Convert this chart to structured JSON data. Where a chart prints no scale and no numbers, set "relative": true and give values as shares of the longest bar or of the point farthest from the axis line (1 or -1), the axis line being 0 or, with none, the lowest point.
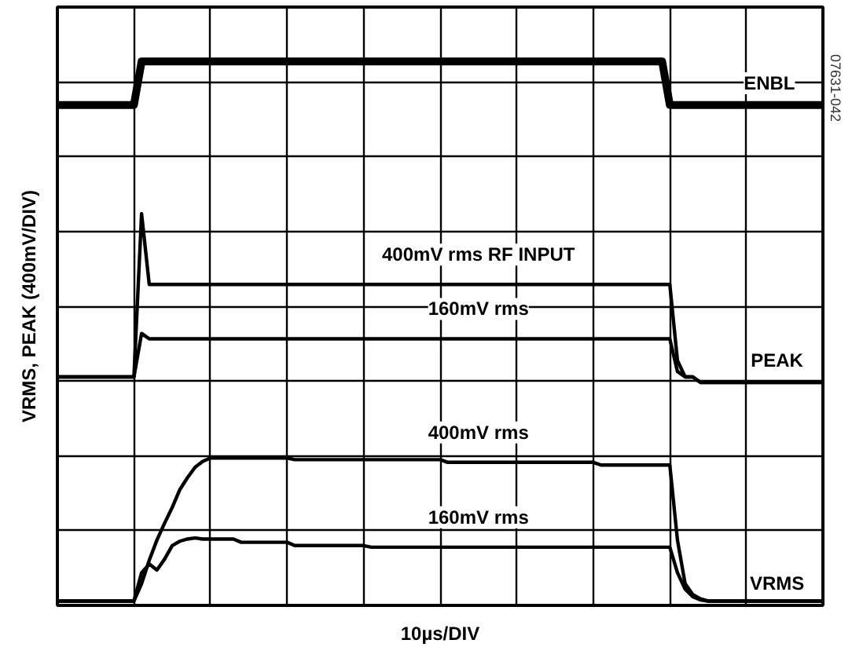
{
  "chart_data": {
    "type": "line",
    "relative": true,
    "xlabel": "10µs/DIV",
    "ylabel": "VRMS, PEAK (400mV/DIV)",
    "categories": [
      null,
      null,
      null,
      null,
      null,
      null,
      null,
      null,
      null,
      null,
      null,
      null,
      null,
      null,
      null,
      null,
      null,
      null,
      null,
      null,
      null,
      null,
      null,
      null,
      null,
      null,
      null,
      null,
      null,
      null,
      null,
      null,
      null,
      null,
      null,
      null,
      null,
      null,
      null,
      null,
      null,
      null,
      null,
      null,
      null,
      null,
      null,
      null,
      null,
      null,
      null,
      null,
      null,
      null,
      null,
      null,
      null,
      null,
      null,
      null,
      null,
      null,
      null,
      null,
      null,
      null,
      null,
      null,
      null,
      null,
      null,
      null,
      null,
      null,
      null,
      null,
      null,
      null,
      null,
      null,
      null,
      null,
      null,
      null,
      null,
      null,
      null,
      null,
      null,
      null,
      null,
      null,
      null,
      null,
      null,
      null,
      null,
      null,
      null,
      null,
      null
    ],
    "grid": true,
    "legend": false,
    "marker": "none",
    "line_style": "solid",
    "series": [
      {
        "name": "ENBL",
        "color": "#000000",
        "values": [
          0.92,
          0.92,
          0.92,
          0.92,
          0.92,
          0.92,
          0.92,
          0.92,
          0.92,
          0.92,
          0.92,
          1,
          1,
          1,
          1,
          1,
          1,
          1,
          1,
          1,
          1,
          1,
          1,
          1,
          1,
          1,
          1,
          1,
          1,
          1,
          1,
          1,
          1,
          1,
          1,
          1,
          1,
          1,
          1,
          1,
          1,
          1,
          1,
          1,
          1,
          1,
          1,
          1,
          1,
          1,
          1,
          1,
          1,
          1,
          1,
          1,
          1,
          1,
          1,
          1,
          1,
          1,
          1,
          1,
          1,
          1,
          1,
          1,
          1,
          1,
          1,
          1,
          1,
          1,
          1,
          1,
          1,
          1,
          1,
          1,
          0.92,
          0.92,
          0.92,
          0.92,
          0.92,
          0.92,
          0.92,
          0.92,
          0.92,
          0.92,
          0.92,
          0.92,
          0.92,
          0.92,
          0.92,
          0.92,
          0.92,
          0.92,
          0.92,
          0.92,
          0.92
        ]
      },
      {
        "name": "400mV rms RF INPUT",
        "color": "#000000",
        "values": [
          0.42,
          0.42,
          0.42,
          0.42,
          0.42,
          0.42,
          0.42,
          0.42,
          0.42,
          0.42,
          0.42,
          0.72,
          0.59,
          0.59,
          0.59,
          0.59,
          0.59,
          0.59,
          0.59,
          0.59,
          0.59,
          0.59,
          0.59,
          0.59,
          0.59,
          0.59,
          0.59,
          0.59,
          0.59,
          0.59,
          0.59,
          0.59,
          0.59,
          0.59,
          0.59,
          0.59,
          0.59,
          0.59,
          0.59,
          0.59,
          0.59,
          0.59,
          0.59,
          0.59,
          0.59,
          0.59,
          0.59,
          0.59,
          0.59,
          0.59,
          0.59,
          0.59,
          0.59,
          0.59,
          0.59,
          0.59,
          0.59,
          0.59,
          0.59,
          0.59,
          0.59,
          0.59,
          0.59,
          0.59,
          0.59,
          0.59,
          0.59,
          0.59,
          0.59,
          0.59,
          0.59,
          0.59,
          0.59,
          0.59,
          0.59,
          0.59,
          0.59,
          0.59,
          0.59,
          0.59,
          0.59,
          0.45,
          0.42,
          0.42,
          0.41,
          0.41,
          0.41,
          0.41,
          0.41,
          0.41,
          0.41,
          0.41,
          0.41,
          0.41,
          0.41,
          0.41,
          0.41,
          0.41,
          0.41,
          0.41,
          0.41
        ]
      },
      {
        "name": "160mV rms",
        "color": "#000000",
        "values": [
          0.42,
          0.42,
          0.42,
          0.42,
          0.42,
          0.42,
          0.42,
          0.42,
          0.42,
          0.42,
          0.42,
          0.5,
          0.49,
          0.49,
          0.49,
          0.49,
          0.49,
          0.49,
          0.49,
          0.49,
          0.49,
          0.49,
          0.49,
          0.49,
          0.49,
          0.49,
          0.49,
          0.49,
          0.49,
          0.49,
          0.49,
          0.49,
          0.49,
          0.49,
          0.49,
          0.49,
          0.49,
          0.49,
          0.49,
          0.49,
          0.49,
          0.49,
          0.49,
          0.49,
          0.49,
          0.49,
          0.49,
          0.49,
          0.49,
          0.49,
          0.49,
          0.49,
          0.49,
          0.49,
          0.49,
          0.49,
          0.49,
          0.49,
          0.49,
          0.49,
          0.49,
          0.49,
          0.49,
          0.49,
          0.49,
          0.49,
          0.49,
          0.49,
          0.49,
          0.49,
          0.49,
          0.49,
          0.49,
          0.49,
          0.49,
          0.49,
          0.49,
          0.49,
          0.49,
          0.49,
          0.49,
          0.43,
          0.42,
          0.42,
          0.41,
          0.41,
          0.41,
          0.41,
          0.41,
          0.41,
          0.41,
          0.41,
          0.41,
          0.41,
          0.41,
          0.41,
          0.41,
          0.41,
          0.41,
          0.41,
          0.41
        ]
      },
      {
        "name": "400mV rms",
        "color": "#000000",
        "values": [
          0.008,
          0.008,
          0.008,
          0.008,
          0.008,
          0.008,
          0.008,
          0.008,
          0.008,
          0.008,
          0.008,
          0.04,
          0.083,
          0.12,
          0.151,
          0.18,
          0.213,
          0.235,
          0.254,
          0.265,
          0.271,
          0.271,
          0.271,
          0.271,
          0.271,
          0.271,
          0.271,
          0.271,
          0.271,
          0.271,
          0.271,
          0.268,
          0.268,
          0.268,
          0.268,
          0.268,
          0.268,
          0.268,
          0.268,
          0.268,
          0.268,
          0.268,
          0.268,
          0.268,
          0.268,
          0.268,
          0.268,
          0.268,
          0.268,
          0.268,
          0.268,
          0.263,
          0.263,
          0.263,
          0.263,
          0.263,
          0.263,
          0.263,
          0.263,
          0.263,
          0.263,
          0.263,
          0.263,
          0.263,
          0.263,
          0.263,
          0.263,
          0.263,
          0.263,
          0.263,
          0.263,
          0.258,
          0.258,
          0.258,
          0.258,
          0.258,
          0.258,
          0.258,
          0.258,
          0.258,
          0.258,
          0.12,
          0.04,
          0.02,
          0.012,
          0.008,
          0.008,
          0.008,
          0.008,
          0.008,
          0.008,
          0.008,
          0.008,
          0.008,
          0.008,
          0.008,
          0.008,
          0.008,
          0.008,
          0.008,
          0.008
        ]
      },
      {
        "name": "160mV rms",
        "color": "#000000",
        "values": [
          0.008,
          0.008,
          0.008,
          0.008,
          0.008,
          0.008,
          0.008,
          0.008,
          0.008,
          0.008,
          0.008,
          0.06,
          0.076,
          0.065,
          0.085,
          0.11,
          0.118,
          0.122,
          0.124,
          0.122,
          0.122,
          0.122,
          0.122,
          0.122,
          0.116,
          0.116,
          0.116,
          0.116,
          0.116,
          0.116,
          0.116,
          0.11,
          0.11,
          0.11,
          0.11,
          0.11,
          0.11,
          0.11,
          0.11,
          0.11,
          0.11,
          0.107,
          0.107,
          0.107,
          0.107,
          0.107,
          0.107,
          0.107,
          0.107,
          0.107,
          0.107,
          0.107,
          0.107,
          0.107,
          0.107,
          0.107,
          0.107,
          0.107,
          0.107,
          0.107,
          0.107,
          0.107,
          0.107,
          0.107,
          0.107,
          0.107,
          0.107,
          0.107,
          0.107,
          0.107,
          0.107,
          0.107,
          0.107,
          0.107,
          0.107,
          0.107,
          0.107,
          0.107,
          0.107,
          0.107,
          0.107,
          0.06,
          0.03,
          0.016,
          0.01,
          0.008,
          0.008,
          0.008,
          0.008,
          0.008,
          0.008,
          0.008,
          0.008,
          0.008,
          0.008,
          0.008,
          0.008,
          0.008,
          0.008,
          0.008,
          0.008
        ]
      }
    ],
    "annotations": [
      {
        "text": "PEAK",
        "y": 0.45
      },
      {
        "text": "VRMS",
        "y": 0.04
      },
      "07631-042"
    ]
  }
}
